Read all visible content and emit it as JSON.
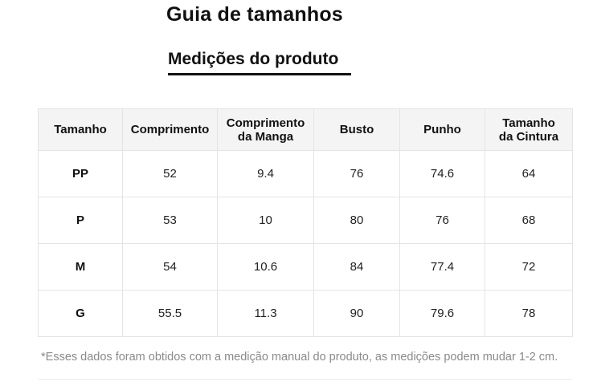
{
  "title": "Guia de tamanhos",
  "subtitle": "Medições do produto",
  "table": {
    "headers": [
      [
        "Tamanho"
      ],
      [
        "Comprimento"
      ],
      [
        "Comprimento",
        "da Manga"
      ],
      [
        "Busto"
      ],
      [
        "Punho"
      ],
      [
        "Tamanho",
        "da Cintura"
      ]
    ],
    "rows": [
      [
        "PP",
        "52",
        "9.4",
        "76",
        "74.6",
        "64"
      ],
      [
        "P",
        "53",
        "10",
        "80",
        "76",
        "68"
      ],
      [
        "M",
        "54",
        "10.6",
        "84",
        "77.4",
        "72"
      ],
      [
        "G",
        "55.5",
        "11.3",
        "90",
        "79.6",
        "78"
      ]
    ]
  },
  "note": "*Esses dados foram obtidos com a medição manual do produto, as medições podem mudar 1-2 cm."
}
